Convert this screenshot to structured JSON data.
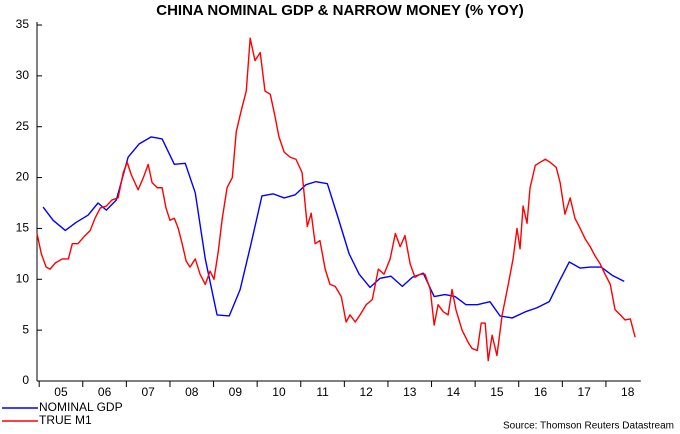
{
  "chart_data": {
    "type": "line",
    "title": "CHINA NOMINAL GDP & NARROW MONEY (% YOY)",
    "source": "Source: Thomson Reuters Datastream",
    "xlim": [
      2004.95,
      2018.8
    ],
    "xticks": [
      {
        "value": 2005.5,
        "label": "05"
      },
      {
        "value": 2006.5,
        "label": "06"
      },
      {
        "value": 2007.5,
        "label": "07"
      },
      {
        "value": 2008.5,
        "label": "08"
      },
      {
        "value": 2009.5,
        "label": "09"
      },
      {
        "value": 2010.5,
        "label": "10"
      },
      {
        "value": 2011.5,
        "label": "11"
      },
      {
        "value": 2012.5,
        "label": "12"
      },
      {
        "value": 2013.5,
        "label": "13"
      },
      {
        "value": 2014.5,
        "label": "14"
      },
      {
        "value": 2015.5,
        "label": "15"
      },
      {
        "value": 2016.5,
        "label": "16"
      },
      {
        "value": 2017.5,
        "label": "17"
      },
      {
        "value": 2018.5,
        "label": "18"
      }
    ],
    "ylim": [
      0,
      35
    ],
    "yticks": [
      0,
      5,
      10,
      15,
      20,
      25,
      30,
      35
    ],
    "legend": "bottom-left",
    "series": [
      {
        "name": "NOMINAL GDP",
        "color": "#0000ff",
        "x": [
          2005.09,
          2005.32,
          2005.6,
          2005.85,
          2006.12,
          2006.35,
          2006.54,
          2006.77,
          2007.04,
          2007.29,
          2007.57,
          2007.82,
          2008.1,
          2008.35,
          2008.58,
          2008.81,
          2009.08,
          2009.36,
          2009.61,
          2009.86,
          2010.11,
          2010.37,
          2010.62,
          2010.87,
          2011.12,
          2011.35,
          2011.61,
          2011.86,
          2012.11,
          2012.34,
          2012.59,
          2012.82,
          2013.07,
          2013.33,
          2013.56,
          2013.81,
          2014.06,
          2014.31,
          2014.54,
          2014.79,
          2015.05,
          2015.34,
          2015.57,
          2015.85,
          2016.15,
          2016.42,
          2016.7,
          2016.93,
          2017.16,
          2017.41,
          2017.64,
          2017.89,
          2018.14,
          2018.42
        ],
        "values": [
          17.1,
          15.8,
          14.8,
          15.6,
          16.3,
          17.5,
          16.8,
          17.8,
          22.0,
          23.3,
          24.0,
          23.8,
          21.3,
          21.4,
          18.5,
          12.0,
          6.5,
          6.4,
          9.0,
          13.5,
          18.2,
          18.4,
          18.0,
          18.3,
          19.3,
          19.6,
          19.4,
          16.0,
          12.5,
          10.5,
          9.2,
          10.1,
          10.3,
          9.3,
          10.2,
          10.6,
          8.3,
          8.5,
          8.3,
          7.5,
          7.5,
          7.8,
          6.4,
          6.2,
          6.8,
          7.2,
          7.8,
          9.8,
          11.7,
          11.1,
          11.2,
          11.2,
          10.4,
          9.8
        ]
      },
      {
        "name": "TRUE M1",
        "color": "#ff0000",
        "x": [
          2004.95,
          2005.05,
          2005.16,
          2005.25,
          2005.37,
          2005.53,
          2005.67,
          2005.76,
          2005.89,
          2006.03,
          2006.17,
          2006.28,
          2006.4,
          2006.54,
          2006.67,
          2006.81,
          2006.93,
          2007.02,
          2007.11,
          2007.27,
          2007.39,
          2007.5,
          2007.59,
          2007.71,
          2007.82,
          2007.91,
          2008.0,
          2008.1,
          2008.19,
          2008.28,
          2008.37,
          2008.46,
          2008.58,
          2008.69,
          2008.81,
          2008.92,
          2009.01,
          2009.11,
          2009.2,
          2009.31,
          2009.43,
          2009.52,
          2009.63,
          2009.75,
          2009.84,
          2009.95,
          2010.07,
          2010.18,
          2010.3,
          2010.41,
          2010.5,
          2010.62,
          2010.76,
          2010.89,
          2011.03,
          2011.15,
          2011.24,
          2011.33,
          2011.44,
          2011.56,
          2011.67,
          2011.79,
          2011.93,
          2012.04,
          2012.13,
          2012.25,
          2012.36,
          2012.5,
          2012.64,
          2012.78,
          2012.91,
          2013.05,
          2013.17,
          2013.28,
          2013.39,
          2013.51,
          2013.62,
          2013.74,
          2013.85,
          2013.97,
          2014.06,
          2014.15,
          2014.27,
          2014.38,
          2014.47,
          2014.56,
          2014.7,
          2014.84,
          2014.93,
          2015.05,
          2015.14,
          2015.23,
          2015.3,
          2015.39,
          2015.5,
          2015.62,
          2015.76,
          2015.87,
          2015.96,
          2016.03,
          2016.1,
          2016.19,
          2016.26,
          2016.38,
          2016.49,
          2016.61,
          2016.72,
          2016.86,
          2016.95,
          2017.06,
          2017.18,
          2017.29,
          2017.41,
          2017.52,
          2017.64,
          2017.75,
          2017.87,
          2017.98,
          2018.1,
          2018.21,
          2018.33,
          2018.44,
          2018.56,
          2018.67
        ],
        "values": [
          14.5,
          12.5,
          11.2,
          11.0,
          11.6,
          12.0,
          12.0,
          13.5,
          13.5,
          14.2,
          14.8,
          16.0,
          17.0,
          17.2,
          17.8,
          18.0,
          20.5,
          21.5,
          20.3,
          18.8,
          20.0,
          21.3,
          19.5,
          19.0,
          19.0,
          17.0,
          15.8,
          16.0,
          15.0,
          13.5,
          11.8,
          11.2,
          12.0,
          10.5,
          9.5,
          10.8,
          10.0,
          12.8,
          16.0,
          19.0,
          20.0,
          24.5,
          26.5,
          28.5,
          33.7,
          31.5,
          32.3,
          28.5,
          28.2,
          26.0,
          24.0,
          22.5,
          22.0,
          21.8,
          20.5,
          15.2,
          16.5,
          13.5,
          13.8,
          11.0,
          9.5,
          9.3,
          8.3,
          5.8,
          6.5,
          5.8,
          6.5,
          7.5,
          8.0,
          11.0,
          10.5,
          12.0,
          14.5,
          13.2,
          14.3,
          11.5,
          10.2,
          10.5,
          10.5,
          9.0,
          5.5,
          7.5,
          6.8,
          6.5,
          9.0,
          7.0,
          5.0,
          3.8,
          3.2,
          3.0,
          5.7,
          5.7,
          2.0,
          4.5,
          2.5,
          6.5,
          9.5,
          12.0,
          15.0,
          13.0,
          17.2,
          15.5,
          19.0,
          21.2,
          21.5,
          21.8,
          21.5,
          21.0,
          19.5,
          16.4,
          18.0,
          16.0,
          15.0,
          14.0,
          13.2,
          12.3,
          11.5,
          10.5,
          9.5,
          7.0,
          6.5,
          6.0,
          6.1,
          4.3
        ]
      }
    ]
  }
}
